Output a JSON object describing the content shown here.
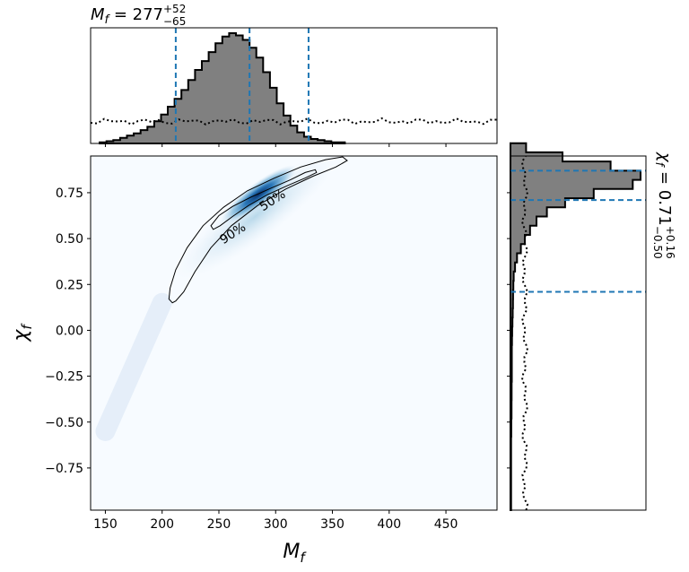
{
  "chart_data": {
    "type": "corner",
    "joint": {
      "type": "heatmap",
      "xlabel_var": "M",
      "xlabel_sub": "f",
      "ylabel_var": "χ",
      "ylabel_sub": "f",
      "xlim": [
        137,
        495
      ],
      "ylim": [
        -0.98,
        0.95
      ],
      "xticks": [
        150,
        200,
        250,
        300,
        350,
        400,
        450
      ],
      "yticks": [
        -0.75,
        -0.5,
        -0.25,
        0.0,
        0.25,
        0.5,
        0.75
      ],
      "ytick_labels": [
        "−0.75",
        "−0.50",
        "−0.25",
        "0.00",
        "0.25",
        "0.50",
        "0.75"
      ],
      "density_peak": {
        "x": 285,
        "y": 0.74
      },
      "contours": [
        {
          "label": "90%",
          "label_at": [
            262,
            0.53
          ],
          "points": [
            [
              209,
              0.15
            ],
            [
              206,
              0.17
            ],
            [
              207,
              0.23
            ],
            [
              212,
              0.33
            ],
            [
              222,
              0.45
            ],
            [
              236,
              0.57
            ],
            [
              254,
              0.67
            ],
            [
              275,
              0.76
            ],
            [
              299,
              0.83
            ],
            [
              322,
              0.89
            ],
            [
              344,
              0.93
            ],
            [
              359,
              0.945
            ],
            [
              363,
              0.925
            ],
            [
              353,
              0.89
            ],
            [
              333,
              0.84
            ],
            [
              309,
              0.77
            ],
            [
              284,
              0.68
            ],
            [
              261,
              0.57
            ],
            [
              243,
              0.45
            ],
            [
              229,
              0.32
            ],
            [
              219,
              0.21
            ],
            [
              212,
              0.16
            ]
          ]
        },
        {
          "label": "50%",
          "label_at": [
            297,
            0.71
          ],
          "points": [
            [
              245,
              0.55
            ],
            [
              243,
              0.57
            ],
            [
              250,
              0.625
            ],
            [
              262,
              0.675
            ],
            [
              278,
              0.725
            ],
            [
              296,
              0.775
            ],
            [
              313,
              0.82
            ],
            [
              326,
              0.86
            ],
            [
              335,
              0.875
            ],
            [
              336,
              0.86
            ],
            [
              326,
              0.83
            ],
            [
              311,
              0.79
            ],
            [
              293,
              0.74
            ],
            [
              276,
              0.68
            ],
            [
              262,
              0.62
            ],
            [
              251,
              0.57
            ]
          ]
        }
      ]
    },
    "x_marginal": {
      "type": "histogram",
      "title_text": "M",
      "title_sub": "f",
      "title_value": " = 277",
      "title_sup": "+52",
      "title_subscript": "−65",
      "edges_start": 145,
      "bin_width": 6,
      "counts": [
        1,
        2,
        3,
        5,
        7,
        9,
        12,
        15,
        20,
        26,
        33,
        40,
        48,
        57,
        66,
        74,
        82,
        90,
        96,
        99,
        97,
        93,
        86,
        77,
        64,
        50,
        36,
        25,
        16,
        10,
        6,
        4,
        3,
        2,
        1,
        1
      ],
      "quantiles": [
        212,
        277,
        329
      ],
      "prior_level": 0.19
    },
    "y_marginal": {
      "type": "histogram",
      "title_text": "χ",
      "title_sub": "f",
      "title_value": " = 0.71",
      "title_sup": "+0.16",
      "title_subscript": "−0.50",
      "edges_start": -0.98,
      "bin_width": 0.05,
      "counts": [
        0.5,
        0.5,
        0.5,
        0.5,
        0.5,
        0.5,
        0.5,
        0.5,
        0.6,
        0.6,
        0.8,
        0.8,
        0.9,
        0.9,
        1,
        1,
        1,
        1,
        1.2,
        1.3,
        1.5,
        1.7,
        1.9,
        2,
        2.2,
        2.5,
        3.5,
        5,
        8,
        11,
        15,
        20,
        28,
        42,
        64,
        94,
        100,
        77,
        40,
        12
      ],
      "quantiles": [
        0.21,
        0.71,
        0.87
      ],
      "prior_level": 11
    }
  },
  "colors": {
    "hist_fill": "#808080",
    "quantile_line": "#1f77b4",
    "contour": "#000000"
  }
}
